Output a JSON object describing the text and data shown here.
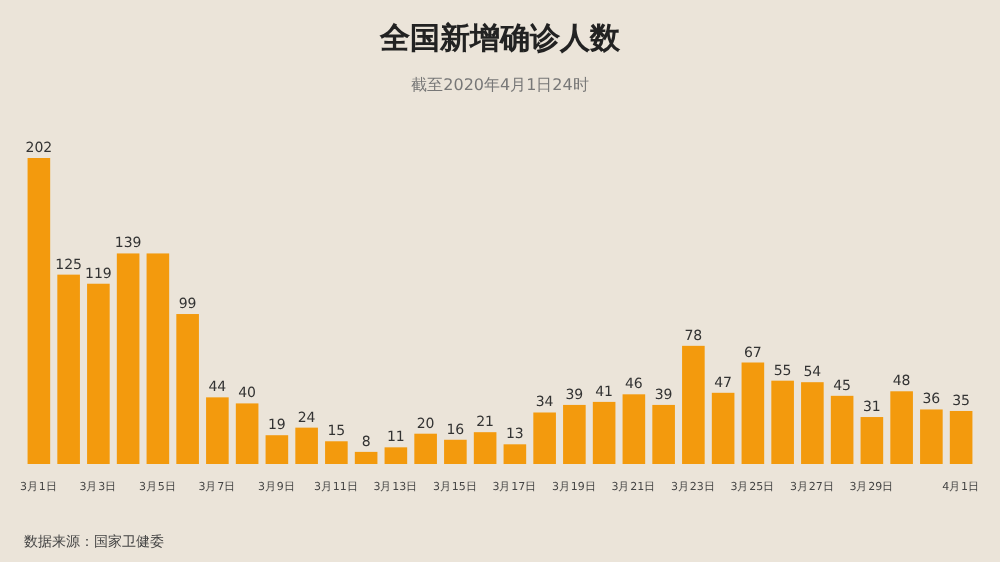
{
  "chart_data": {
    "type": "bar",
    "title": "全国新增确诊人数",
    "subtitle": "截至2020年4月1日24时",
    "categories": [
      "3月1日",
      null,
      "3月3日",
      null,
      "3月5日",
      null,
      "3月7日",
      null,
      "3月9日",
      null,
      "3月11日",
      null,
      "3月13日",
      null,
      "3月15日",
      null,
      "3月17日",
      null,
      "3月19日",
      null,
      "3月21日",
      null,
      "3月23日",
      null,
      "3月25日",
      null,
      "3月27日",
      null,
      "3月29日",
      null,
      null,
      "4月1日"
    ],
    "values": [
      202,
      125,
      119,
      139,
      139,
      99,
      44,
      40,
      19,
      24,
      15,
      8,
      11,
      20,
      16,
      21,
      13,
      34,
      39,
      41,
      46,
      39,
      78,
      47,
      67,
      55,
      54,
      45,
      31,
      48,
      36,
      35
    ],
    "value_labels": [
      "202",
      "125",
      "119",
      "139",
      null,
      "99",
      "44",
      "40",
      "19",
      "24",
      "15",
      "8",
      "11",
      "20",
      "16",
      "21",
      "13",
      "34",
      "39",
      "41",
      "46",
      "39",
      "78",
      "47",
      "67",
      "55",
      "54",
      "45",
      "31",
      "48",
      "36",
      "35"
    ],
    "color": "#f39a0d",
    "annotations": [
      "数据来源：国家卫健委"
    ]
  }
}
